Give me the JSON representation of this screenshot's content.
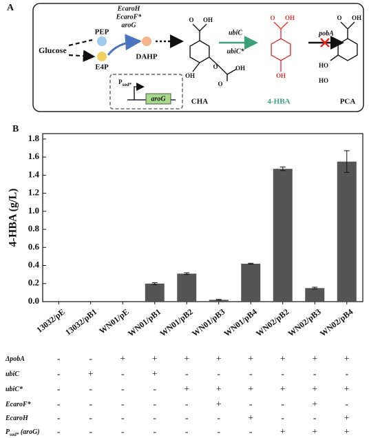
{
  "panel_a": {
    "label": "A",
    "glucose": "Glucose",
    "pep": "PEP",
    "e4p": "E4P",
    "enzymes_1": [
      "EcaroH",
      "EcaroF*",
      "aroG"
    ],
    "dahp": "DAHP",
    "cha": "CHA",
    "enzymes_2": [
      "ubiC",
      "ubiC*"
    ],
    "hba": "4-HBA",
    "enzyme_3": "pobA",
    "pca": "PCA",
    "promoter": {
      "name": "P",
      "subscript": "sod*"
    },
    "gene": "aroG",
    "atoms": {
      "cha": [
        "O",
        "OH",
        "OH",
        "O",
        "O",
        "OH"
      ],
      "hba": [
        "O",
        "OH",
        "OH"
      ],
      "pca": [
        "O",
        "OH",
        "HO",
        "HO"
      ]
    }
  },
  "chart_data": {
    "type": "bar",
    "panel_label": "B",
    "y_label": "4-HBA (g/L)",
    "categories": [
      "13032/pE",
      "13032/pB1",
      "WN01/pE",
      "WN01/pB1",
      "WN01/pB2",
      "WN01/pB3",
      "WN01/pB4",
      "WN02/pB2",
      "WN02/pB3",
      "WN02/pB4"
    ],
    "values": [
      0,
      0,
      0,
      0.2,
      0.31,
      0.02,
      0.42,
      1.47,
      0.15,
      1.55
    ],
    "errors": [
      0,
      0,
      0,
      0.01,
      0.01,
      0.005,
      0.005,
      0.02,
      0.01,
      0.12
    ],
    "color": "#555555",
    "ylim": [
      0,
      1.86
    ],
    "yticks": [
      {
        "value": 0,
        "label": "0.0"
      },
      0.2,
      0.4,
      0.6,
      0.8,
      {
        "value": 1,
        "label": "1.0"
      },
      1.2,
      1.4,
      1.6,
      1.8
    ]
  },
  "genotype_table": {
    "rows": [
      {
        "name": "ΔpobA",
        "marks": [
          "-",
          "-",
          "+",
          "+",
          "+",
          "+",
          "+",
          "+",
          "+",
          "+"
        ]
      },
      {
        "name": "ubiC",
        "marks": [
          "-",
          "+",
          "-",
          "+",
          "-",
          "-",
          "-",
          "-",
          "-",
          "-"
        ]
      },
      {
        "name": "ubiC*",
        "marks": [
          "-",
          "-",
          "-",
          "-",
          "+",
          "+",
          "+",
          "+",
          "+",
          "+"
        ]
      },
      {
        "name": "EcaroF*",
        "marks": [
          "-",
          "-",
          "-",
          "-",
          "-",
          "+",
          "-",
          "-",
          "+",
          "-"
        ]
      },
      {
        "name": "EcaroH",
        "marks": [
          "-",
          "-",
          "-",
          "-",
          "-",
          "-",
          "+",
          "-",
          "-",
          "+"
        ]
      },
      {
        "name": "P",
        "subscript": "sod*",
        "suffix": " (aroG)",
        "marks": [
          "-",
          "-",
          "-",
          "-",
          "-",
          "-",
          "-",
          "+",
          "+",
          "+"
        ]
      }
    ]
  }
}
